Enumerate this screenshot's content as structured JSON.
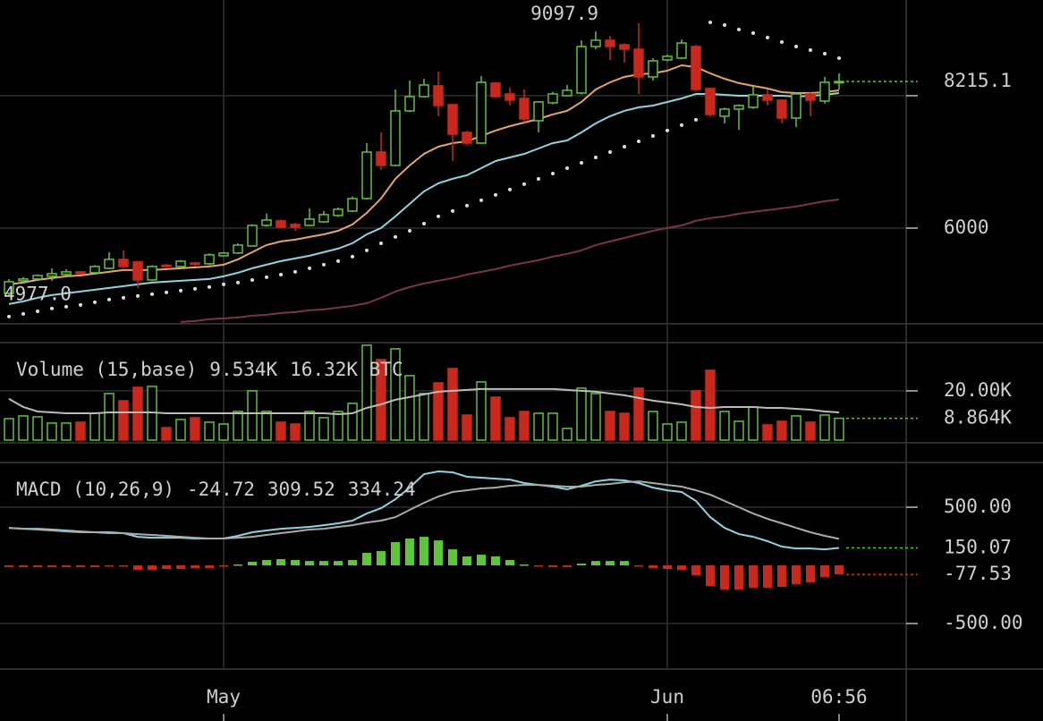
{
  "chart_data": [
    {
      "type": "candlestick",
      "open": [
        5015,
        5204,
        5231,
        5271,
        5299,
        5339,
        5326,
        5393,
        5528,
        5488,
        5217,
        5440,
        5420,
        5474,
        5461,
        5582,
        5623,
        5730,
        6041,
        6109,
        6055,
        6041,
        6095,
        6190,
        6258,
        6447,
        7149,
        6947,
        7771,
        7987,
        8149,
        7865,
        7446,
        7284,
        8190,
        8027,
        7960,
        7622,
        7892,
        8000,
        8041,
        8743,
        8838,
        8770,
        8703,
        8284,
        8541,
        8568,
        8743,
        8109,
        7690,
        7798,
        7825,
        8014,
        7933,
        7663,
        8027,
        7919,
        8203
      ],
      "high": [
        5230,
        5260,
        5300,
        5393,
        5380,
        5350,
        5440,
        5636,
        5660,
        5500,
        5440,
        5460,
        5520,
        5490,
        5620,
        5640,
        5770,
        6060,
        6220,
        6130,
        6080,
        6300,
        6260,
        6310,
        6480,
        7284,
        7446,
        8095,
        8230,
        8257,
        8365,
        7880,
        7470,
        8298,
        8210,
        8122,
        8095,
        7920,
        8060,
        8162,
        8838,
        8973,
        8906,
        8790,
        9097.9,
        8568,
        8620,
        8850,
        8770,
        8120,
        7820,
        7870,
        8149,
        8095,
        7950,
        8050,
        8050,
        8284,
        8338
      ],
      "low": [
        4977,
        5180,
        5220,
        5204,
        5280,
        5300,
        5310,
        5380,
        5393,
        5096,
        5200,
        5400,
        5410,
        5420,
        5440,
        5570,
        5610,
        5720,
        6020,
        6000,
        5960,
        6030,
        6080,
        6170,
        6240,
        6430,
        6879,
        6930,
        7750,
        7970,
        7690,
        7014,
        7250,
        7270,
        7970,
        7852,
        7595,
        7446,
        7870,
        7990,
        8020,
        8703,
        8541,
        8500,
        8027,
        8230,
        8520,
        8550,
        8068,
        7690,
        7581,
        7487,
        7800,
        7852,
        7581,
        7528,
        7690,
        7880,
        8095
      ],
      "close": [
        5190,
        5231,
        5285,
        5312,
        5339,
        5312,
        5420,
        5528,
        5420,
        5217,
        5420,
        5420,
        5501,
        5460,
        5596,
        5623,
        5744,
        6041,
        6122,
        6014,
        6014,
        6136,
        6204,
        6285,
        6447,
        7149,
        6947,
        7771,
        7987,
        8162,
        7852,
        7419,
        7284,
        8203,
        7987,
        7933,
        7649,
        7906,
        8027,
        8081,
        8743,
        8838,
        8743,
        8703,
        8284,
        8527,
        8595,
        8797,
        8095,
        7717,
        7798,
        7852,
        8014,
        7933,
        7663,
        8027,
        7933,
        8203,
        8215.1
      ],
      "up_color": "#5fc33b",
      "down_color": "#c8281e",
      "series": [
        {
          "color": "#e8a463",
          "style": "line",
          "values": [
            5150,
            5177,
            5217,
            5244,
            5271,
            5285,
            5312,
            5339,
            5366,
            5366,
            5366,
            5380,
            5393,
            5407,
            5420,
            5447,
            5528,
            5636,
            5744,
            5798,
            5825,
            5866,
            5906,
            5960,
            6055,
            6230,
            6447,
            6744,
            6947,
            7122,
            7230,
            7284,
            7311,
            7392,
            7474,
            7541,
            7595,
            7649,
            7717,
            7771,
            7906,
            8095,
            8203,
            8284,
            8325,
            8338,
            8379,
            8460,
            8433,
            8338,
            8257,
            8190,
            8149,
            8109,
            8054,
            8041,
            8041,
            8054,
            8081
          ]
        },
        {
          "color": "#8fd3e0",
          "style": "line",
          "values": [
            4853,
            4893,
            4947,
            4988,
            5015,
            5042,
            5069,
            5096,
            5123,
            5150,
            5177,
            5190,
            5204,
            5217,
            5231,
            5271,
            5326,
            5393,
            5447,
            5501,
            5542,
            5582,
            5636,
            5690,
            5771,
            5906,
            6001,
            6177,
            6366,
            6555,
            6677,
            6744,
            6798,
            6906,
            7014,
            7068,
            7122,
            7203,
            7284,
            7325,
            7446,
            7582,
            7690,
            7771,
            7825,
            7852,
            7906,
            7960,
            8027,
            8027,
            8014,
            8000,
            8000,
            8000,
            8000,
            7987,
            8000,
            8014,
            8041
          ]
        },
        {
          "color": "#dddddd",
          "style": "dots",
          "values": [
            4663,
            4704,
            4744,
            4785,
            4812,
            4839,
            4880,
            4920,
            4947,
            4974,
            5001,
            5028,
            5055,
            5082,
            5109,
            5150,
            5177,
            5217,
            5258,
            5298,
            5339,
            5393,
            5447,
            5501,
            5569,
            5663,
            5771,
            5866,
            5960,
            6068,
            6177,
            6258,
            6339,
            6420,
            6501,
            6582,
            6663,
            6744,
            6825,
            6906,
            6987,
            7068,
            7149,
            7230,
            7311,
            7392,
            7474,
            7555,
            7636,
            9108,
            9068,
            9000,
            8946,
            8879,
            8811,
            8743,
            8689,
            8635,
            8568
          ]
        },
        {
          "color": "#7a3444",
          "style": "line",
          "values": [
            null,
            null,
            null,
            null,
            null,
            null,
            null,
            null,
            null,
            null,
            null,
            null,
            4582,
            4596,
            4623,
            4636,
            4650,
            4677,
            4690,
            4717,
            4731,
            4758,
            4771,
            4798,
            4825,
            4866,
            4947,
            5042,
            5109,
            5163,
            5204,
            5244,
            5298,
            5339,
            5380,
            5434,
            5474,
            5515,
            5569,
            5609,
            5663,
            5744,
            5798,
            5852,
            5906,
            5960,
            6001,
            6041,
            6109,
            6150,
            6177,
            6217,
            6244,
            6271,
            6298,
            6325,
            6366,
            6406,
            6433
          ]
        }
      ],
      "ylim": [
        4554,
        9446
      ],
      "yticks": [
        6000
      ],
      "gridlines": [
        8000
      ],
      "low_label": "4977.0"
    },
    {
      "type": "bar",
      "values": [
        8726,
        9817,
        9454,
        6908,
        6908,
        7272,
        10908,
        18907,
        15998,
        21452,
        21816,
        5090,
        8363,
        9090,
        7272,
        6545,
        11635,
        19998,
        11635,
        7272,
        6545,
        11635,
        9090,
        11635,
        14908,
        38542,
        32724,
        37087,
        26179,
        18907,
        23270,
        29088,
        10181,
        23634,
        17453,
        9090,
        11635,
        10908,
        10908,
        4727,
        21089,
        18907,
        11635,
        10908,
        21089,
        11635,
        6545,
        7272,
        19998,
        28361,
        11635,
        7636,
        13453,
        6181,
        7636,
        9817,
        7272,
        10181,
        8864
      ],
      "series": [
        {
          "color": "#bbbbbb",
          "style": "line",
          "values": [
            16726,
            13453,
            11635,
            11272,
            10908,
            10908,
            10908,
            11272,
            11272,
            11272,
            11272,
            10908,
            10908,
            10908,
            10908,
            10908,
            10908,
            10908,
            10908,
            10908,
            10908,
            10908,
            10908,
            10544,
            10908,
            13090,
            14544,
            16362,
            17453,
            18544,
            19634,
            19998,
            20362,
            20725,
            20725,
            20725,
            20725,
            20725,
            20725,
            20362,
            19998,
            19634,
            18907,
            18180,
            17089,
            15998,
            15271,
            14544,
            13453,
            13090,
            13453,
            13453,
            13453,
            13090,
            13090,
            12726,
            12362,
            11635,
            11272
          ]
        }
      ],
      "ylim": [
        -1100,
        39600
      ],
      "yticks": [
        {
          "value": 20000,
          "label": "20.00K"
        }
      ],
      "last_label": "8.864K",
      "legend": [
        {
          "text": "Volume (15,base)",
          "color": "#cccccc"
        },
        {
          "text": "9.534K",
          "color": "#d9342b"
        },
        {
          "text": "16.32K BTC",
          "color": "#cccccc"
        }
      ]
    },
    {
      "type": "bar",
      "values": [
        -15,
        -15,
        -15,
        -15,
        -15,
        -15,
        -15,
        -8,
        -8,
        -38,
        -38,
        -31,
        -31,
        -23,
        -23,
        -8,
        8,
        31,
        46,
        54,
        46,
        38,
        38,
        38,
        46,
        108,
        123,
        200,
        231,
        246,
        215,
        138,
        77,
        92,
        77,
        46,
        8,
        -8,
        -15,
        -15,
        15,
        38,
        38,
        38,
        -8,
        -23,
        -31,
        -38,
        -85,
        -177,
        -208,
        -208,
        -192,
        -192,
        -185,
        -162,
        -146,
        -100,
        -77.53
      ],
      "series": [
        {
          "color": "#8fd3e0",
          "style": "line",
          "values": [
            323,
            315,
            315,
            308,
            300,
            292,
            285,
            285,
            277,
            246,
            238,
            238,
            238,
            231,
            231,
            231,
            254,
            285,
            300,
            315,
            323,
            331,
            346,
            362,
            385,
            446,
            492,
            569,
            669,
            785,
            808,
            800,
            762,
            754,
            746,
            738,
            708,
            692,
            677,
            654,
            685,
            723,
            738,
            731,
            708,
            669,
            646,
            631,
            554,
            415,
            323,
            269,
            246,
            208,
            162,
            146,
            146,
            138,
            150.07
          ]
        },
        {
          "color": "#aaaaaa",
          "style": "line",
          "values": [
            323,
            315,
            308,
            300,
            292,
            285,
            285,
            277,
            277,
            269,
            262,
            254,
            246,
            238,
            231,
            231,
            238,
            246,
            262,
            277,
            292,
            308,
            315,
            331,
            346,
            369,
            385,
            415,
            477,
            538,
            592,
            631,
            646,
            662,
            669,
            685,
            692,
            692,
            685,
            677,
            677,
            692,
            700,
            715,
            723,
            708,
            692,
            677,
            646,
            608,
            554,
            500,
            446,
            400,
            362,
            323,
            285,
            254,
            228
          ]
        }
      ],
      "ylim": [
        -892,
        885
      ],
      "yticks": [
        {
          "value": 500,
          "label": "500.00"
        },
        {
          "value": -500,
          "label": "-500.00"
        }
      ],
      "legend": [
        {
          "text": "MACD (10,26,9)",
          "color": "#cccccc"
        },
        {
          "text": "-24.72",
          "color": "#d9342b"
        },
        {
          "text": "309.52",
          "color": "#8fd3e0"
        },
        {
          "text": "334.24",
          "color": "#cccccc"
        }
      ],
      "xticks": [
        {
          "value": 15,
          "label": "May"
        },
        {
          "value": 46,
          "label": "Jun"
        },
        {
          "value": 58,
          "label": "06:56"
        }
      ]
    }
  ]
}
